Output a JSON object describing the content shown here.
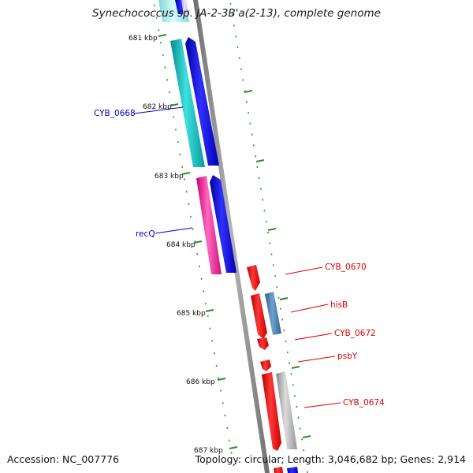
{
  "title": "Synechococcus sp. JA-2-3B'a(2-13), complete genome",
  "footer": {
    "accession": "Accession: NC_007776",
    "summary": "Topology: circular; Length: 3,046,682 bp; Genes: 2,914"
  },
  "colors": {
    "backbone": "#8c8c8c",
    "tick": "#2e8b2e",
    "label_forward": "#0000cc",
    "label_reverse": "#dd0000"
  },
  "kbp_labels": [
    "681 kbp",
    "682 kbp",
    "683 kbp",
    "684 kbp",
    "685 kbp",
    "686 kbp",
    "687 kbp"
  ],
  "genes_left": [
    {
      "name": "",
      "strand": "cog",
      "color": "#00c8c8"
    },
    {
      "name": "",
      "strand": "forward",
      "color": "#0000ee"
    },
    {
      "name": "CYB_0668",
      "strand": "cog",
      "color": "#10b5b5"
    },
    {
      "name": "",
      "strand": "forward",
      "color": "#0000ee"
    },
    {
      "name": "recQ",
      "strand": "cog",
      "color": "#ff2a9c"
    },
    {
      "name": "",
      "strand": "forward",
      "color": "#0000ee"
    }
  ],
  "genes_right": [
    {
      "name": "CYB_0670",
      "strand": "reverse",
      "color": "#ee0000"
    },
    {
      "name": "",
      "strand": "reverse",
      "color": "#ee0000"
    },
    {
      "name": "hisB",
      "strand": "cog",
      "color": "#4682b4"
    },
    {
      "name": "CYB_0672",
      "strand": "reverse",
      "color": "#ee0000"
    },
    {
      "name": "psbY",
      "strand": "reverse",
      "color": "#ee0000"
    },
    {
      "name": "",
      "strand": "reverse",
      "color": "#ee0000"
    },
    {
      "name": "CYB_0674",
      "strand": "cog",
      "color": "#b0b0b0"
    },
    {
      "name": "",
      "strand": "reverse",
      "color": "#ee0000"
    },
    {
      "name": "",
      "strand": "forward",
      "color": "#0000ee"
    }
  ]
}
